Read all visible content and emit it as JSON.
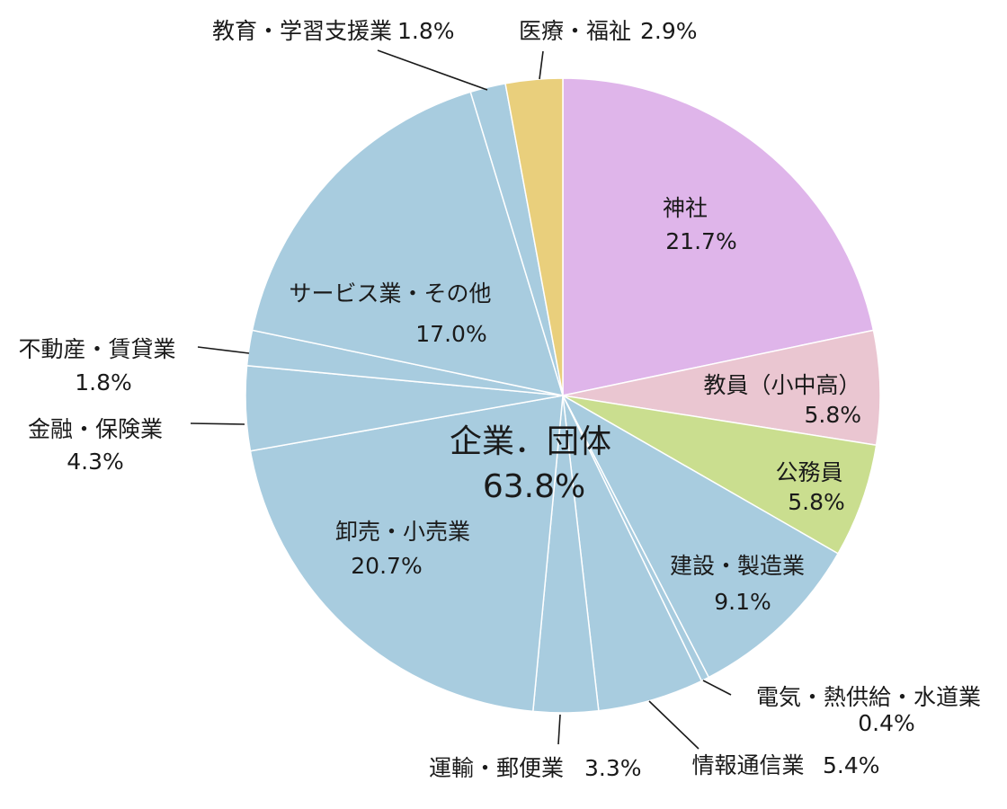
{
  "chart_data": {
    "type": "pie",
    "start": "12 o'clock, clockwise",
    "colors": {
      "jinja": "#dfb5ea",
      "kyoin": "#eac6d1",
      "komuin": "#cade8f",
      "kigyo": "#a8ccdf",
      "iryo": "#e9cf7c",
      "outline": "#ffffff"
    },
    "slices": [
      {
        "label": "神社",
        "value": "21.7%",
        "pct": 21.7,
        "color": "#dfb5ea"
      },
      {
        "label": "教員（小中高）",
        "value": "5.8%",
        "pct": 5.8,
        "color": "#eac6d1"
      },
      {
        "label": "公務員",
        "value": "5.8%",
        "pct": 5.8,
        "color": "#cade8f"
      },
      {
        "label": "建設・製造業",
        "value": "9.1%",
        "pct": 9.1,
        "color": "#a8ccdf"
      },
      {
        "label": "電気・熱供給・水道業",
        "value": "0.4%",
        "pct": 0.4,
        "color": "#a8ccdf"
      },
      {
        "label": "情報通信業",
        "value": "5.4%",
        "pct": 5.4,
        "color": "#a8ccdf"
      },
      {
        "label": "運輸・郵便業",
        "value": "3.3%",
        "pct": 3.3,
        "color": "#a8ccdf"
      },
      {
        "label": "卸売・小売業",
        "value": "20.7%",
        "pct": 20.7,
        "color": "#a8ccdf"
      },
      {
        "label": "金融・保険業",
        "value": "4.3%",
        "pct": 4.3,
        "color": "#a8ccdf"
      },
      {
        "label": "不動産・賃貸業",
        "value": "1.8%",
        "pct": 1.8,
        "color": "#a8ccdf"
      },
      {
        "label": "サービス業・その他",
        "value": "17.0%",
        "pct": 17.0,
        "color": "#a8ccdf"
      },
      {
        "label": "教育・学習支援業",
        "value": "1.8%",
        "pct": 1.8,
        "color": "#a8ccdf"
      },
      {
        "label": "医療・福祉",
        "value": "2.9%",
        "pct": 2.9,
        "color": "#e9cf7c"
      }
    ],
    "group": {
      "label": "企業．団体",
      "value": "63.8%"
    }
  }
}
